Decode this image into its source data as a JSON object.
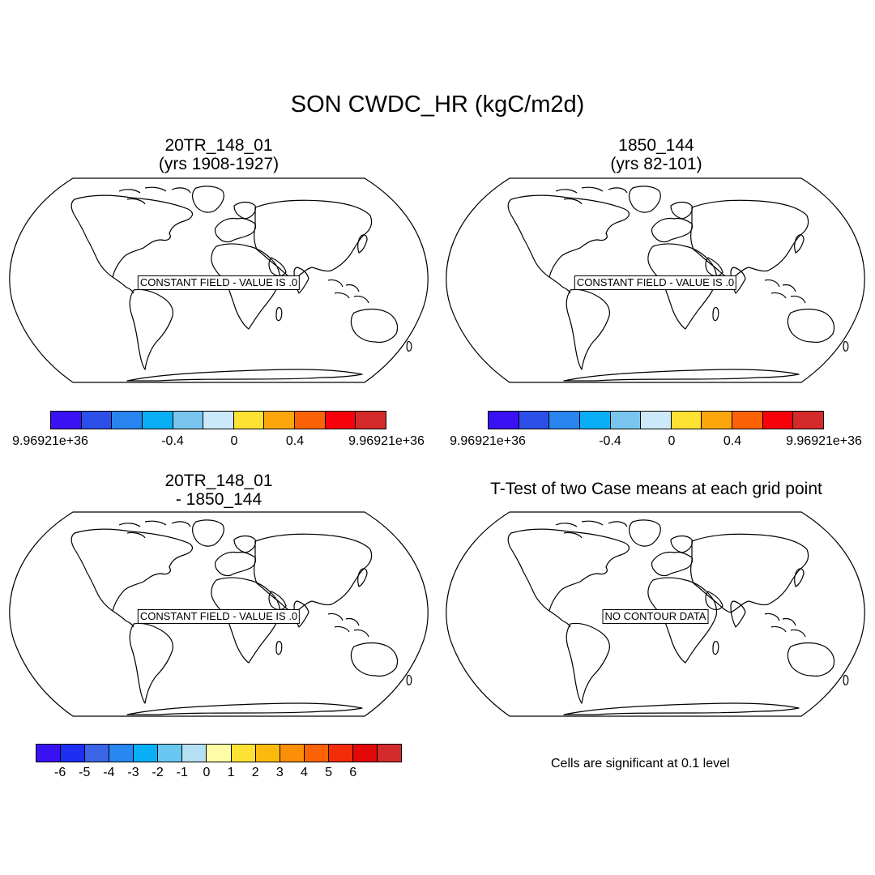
{
  "title": "SON CWDC_HR (kgC/m2d)",
  "panels": [
    {
      "title1": "20TR_148_01",
      "title2": "(yrs 1908-1927)",
      "badge": "CONSTANT FIELD - VALUE IS .0"
    },
    {
      "title1": "1850_144",
      "title2": "(yrs 82-101)",
      "badge": "CONSTANT FIELD - VALUE IS .0"
    },
    {
      "title1": "20TR_148_01",
      "title2": "- 1850_144",
      "badge": "CONSTANT FIELD - VALUE IS .0"
    },
    {
      "title1": "T-Test of two Case means at each grid point",
      "title2": "",
      "badge": "NO CONTOUR DATA"
    }
  ],
  "legend_case": {
    "colors": [
      "#3a11f2",
      "#2b4fe8",
      "#2a84ef",
      "#0aaef5",
      "#78c6ef",
      "#cbe9f8",
      "#fde233",
      "#fca60c",
      "#fb6306",
      "#f7020a",
      "#d52a2a"
    ],
    "labels": [
      "9.96921e+36",
      "-0.4",
      "0",
      "0.4",
      "9.96921e+36"
    ]
  },
  "legend_diff": {
    "colors": [
      "#3a11f2",
      "#1c2ff2",
      "#3b64e6",
      "#2889f5",
      "#0ab0f7",
      "#68c8f2",
      "#b5dff3",
      "#fefca6",
      "#fde233",
      "#fbba0c",
      "#fb8f08",
      "#fb6306",
      "#f52c08",
      "#e30808",
      "#d52a2a"
    ],
    "labels": [
      "-6",
      "-5",
      "-4",
      "-3",
      "-2",
      "-1",
      "0",
      "1",
      "2",
      "3",
      "4",
      "5",
      "6"
    ]
  },
  "significance_note": "Cells are significant at 0.1 level"
}
